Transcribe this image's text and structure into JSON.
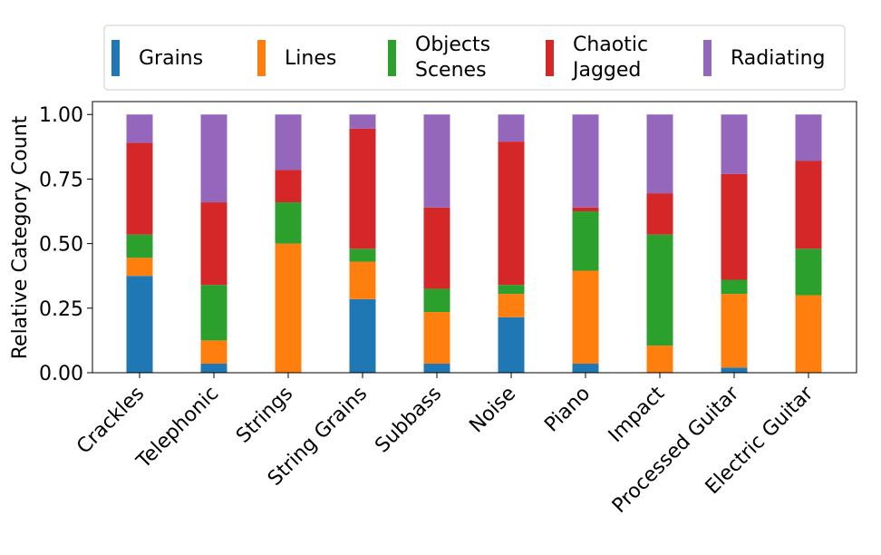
{
  "chart_data": {
    "type": "bar",
    "stacked": true,
    "title": "",
    "xlabel": "",
    "ylabel": "Relative Category Count",
    "ylim": [
      0,
      1.05
    ],
    "yticks": [
      "0.00",
      "0.25",
      "0.50",
      "0.75",
      "1.00"
    ],
    "grid": false,
    "legend_placement": "top",
    "categories": [
      "Crackles",
      "Telephonic",
      "Strings",
      "String Grains",
      "Subbass",
      "Noise",
      "Piano",
      "Impact",
      "Processed Guitar",
      "Electric Guitar"
    ],
    "series": [
      {
        "name": "Grains",
        "label_lines": [
          "Grains"
        ],
        "color": "#1f77b4",
        "values": [
          0.375,
          0.035,
          0.0,
          0.285,
          0.035,
          0.215,
          0.035,
          0.0,
          0.02,
          0.0
        ]
      },
      {
        "name": "Lines",
        "label_lines": [
          "Lines"
        ],
        "color": "#ff7f0e",
        "values": [
          0.07,
          0.09,
          0.5,
          0.145,
          0.2,
          0.09,
          0.36,
          0.105,
          0.285,
          0.3
        ]
      },
      {
        "name": "Objects Scenes",
        "label_lines": [
          "Objects",
          "Scenes"
        ],
        "color": "#2ca02c",
        "values": [
          0.09,
          0.215,
          0.16,
          0.05,
          0.09,
          0.035,
          0.23,
          0.43,
          0.055,
          0.18
        ]
      },
      {
        "name": "Chaotic Jagged",
        "label_lines": [
          "Chaotic",
          "Jagged"
        ],
        "color": "#d62728",
        "values": [
          0.355,
          0.32,
          0.125,
          0.465,
          0.315,
          0.555,
          0.015,
          0.16,
          0.41,
          0.34
        ]
      },
      {
        "name": "Radiating",
        "label_lines": [
          "Radiating"
        ],
        "color": "#9467bd",
        "values": [
          0.11,
          0.34,
          0.215,
          0.055,
          0.36,
          0.105,
          0.36,
          0.305,
          0.23,
          0.18
        ]
      }
    ]
  }
}
